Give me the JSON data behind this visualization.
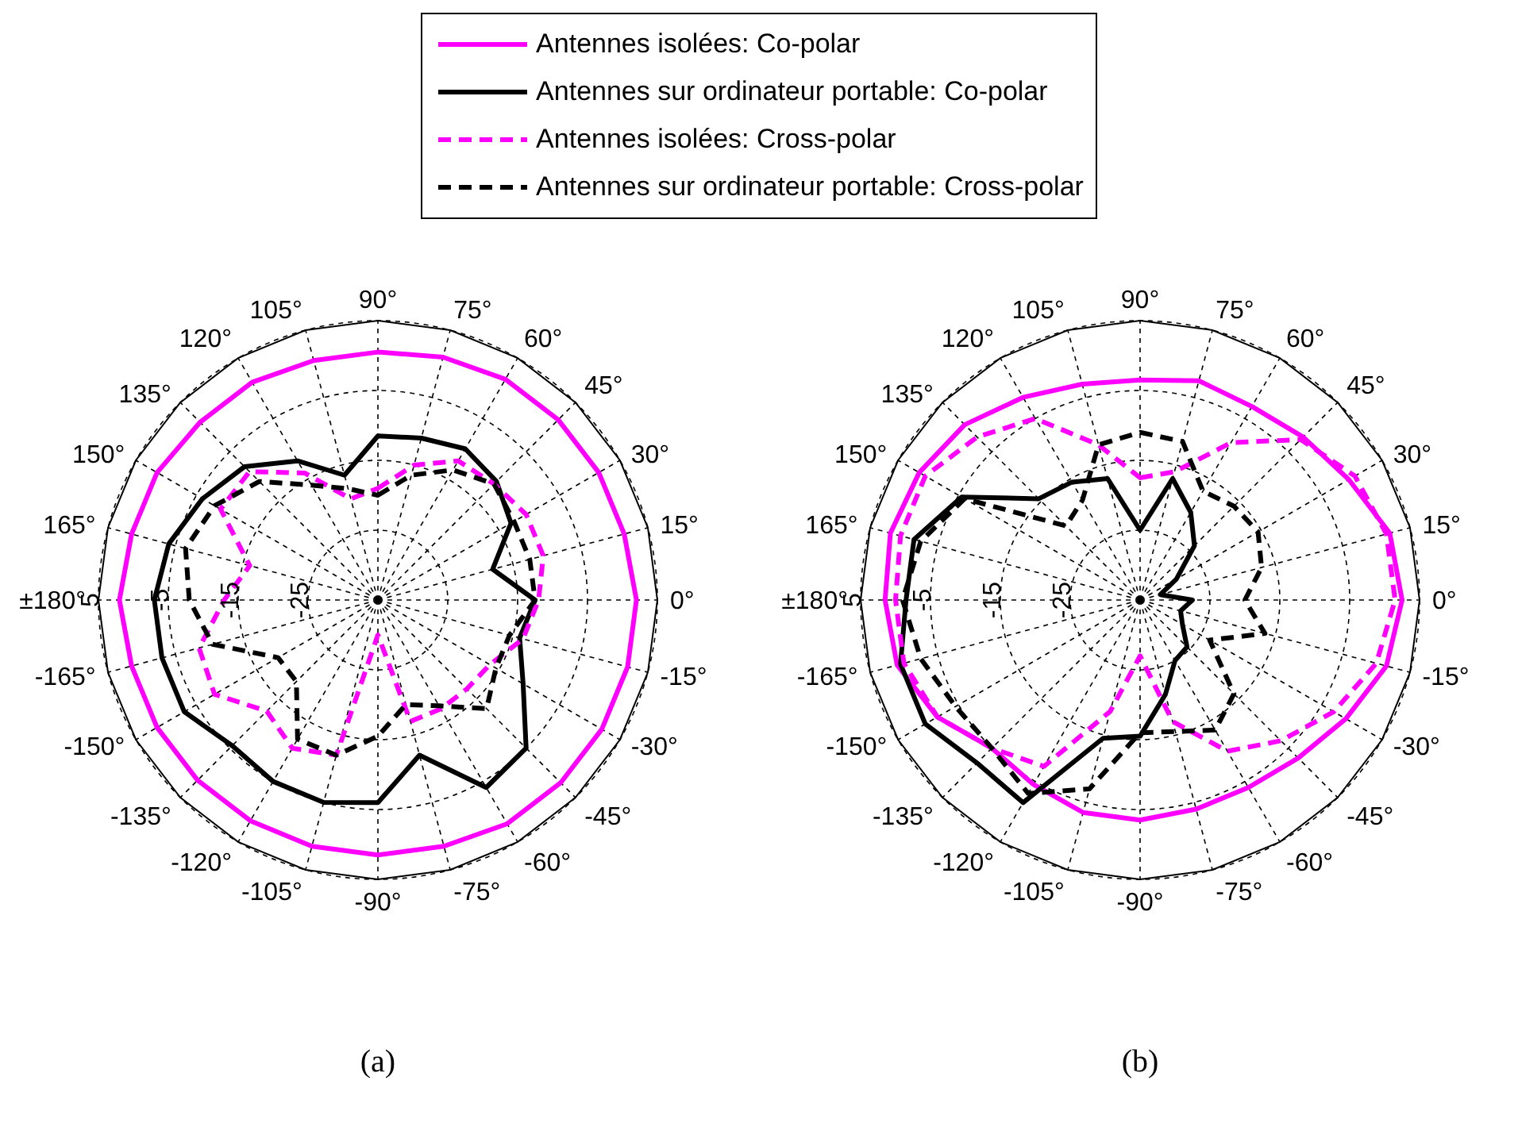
{
  "chart_data": [
    {
      "type": "radar",
      "title": "(a)",
      "categories": [
        "90°",
        "75°",
        "60°",
        "45°",
        "30°",
        "15°",
        "0°",
        "-15°",
        "-30°",
        "-45°",
        "-60°",
        "-75°",
        "-90°",
        "-105°",
        "-120°",
        "-135°",
        "-150°",
        "-165°",
        "±180°",
        "165°",
        "150°",
        "135°",
        "120°",
        "105°"
      ],
      "ylim": [
        -35,
        5
      ],
      "yticks": [
        -25,
        -15,
        -5,
        5
      ],
      "grid": true,
      "legend": "top",
      "series": [
        {
          "name": "Antennes isolées: Co-polar",
          "color": "#ff00ff",
          "line_style": "solid",
          "values": [
            0.5,
            1,
            1.5,
            1.5,
            1.5,
            1.5,
            2,
            2,
            2,
            2,
            2,
            1.5,
            1.5,
            1.5,
            1.5,
            1.5,
            1.5,
            1.5,
            2,
            1.5,
            1.5,
            1,
            1,
            0.5
          ]
        },
        {
          "name": "Antennes sur ordinateur portable: Co-polar",
          "color": "#000000",
          "line_style": "solid",
          "values": [
            -11.5,
            -11,
            -10,
            -11,
            -13,
            -18,
            -12.5,
            -14,
            -11,
            -5,
            -4,
            -12,
            -6,
            -5,
            -5,
            -5.5,
            -3,
            -3,
            -3,
            -4,
            -6,
            -8,
            -12,
            -16.5
          ]
        },
        {
          "name": "Antennes isolées: Cross-polar",
          "color": "#ff00ff",
          "line_style": "dashed",
          "values": [
            -19,
            -15,
            -12,
            -11.5,
            -10.5,
            -10.5,
            -12,
            -13.5,
            -16.5,
            -17,
            -17,
            -17,
            -30,
            -12,
            -10.5,
            -12.5,
            -8,
            -8.5,
            -13,
            -16,
            -9,
            -9,
            -14,
            -20
          ]
        },
        {
          "name": "Antennes sur ordinateur portable: Cross-polar",
          "color": "#000000",
          "line_style": "dashed",
          "values": [
            -20,
            -16.5,
            -13.5,
            -11.5,
            -12.5,
            -12.5,
            -12.5,
            -15.5,
            -15.5,
            -13,
            -17.5,
            -19.5,
            -15.5,
            -12,
            -12,
            -18.5,
            -18.5,
            -10.5,
            -8,
            -6.5,
            -8,
            -11,
            -16,
            -18.5
          ]
        }
      ]
    },
    {
      "type": "radar",
      "title": "(b)",
      "categories": [
        "90°",
        "75°",
        "60°",
        "45°",
        "30°",
        "15°",
        "0°",
        "-15°",
        "-30°",
        "-45°",
        "-60°",
        "-75°",
        "-90°",
        "-105°",
        "-120°",
        "-135°",
        "-150°",
        "-165°",
        "±180°",
        "165°",
        "150°",
        "135°",
        "120°",
        "105°"
      ],
      "ylim": [
        -35,
        5
      ],
      "yticks": [
        -25,
        -15,
        -5,
        5
      ],
      "grid": true,
      "series": [
        {
          "color": "#ff00ff",
          "line_style": "solid",
          "values": [
            -3.5,
            -2.5,
            -3,
            -2,
            -0.5,
            2,
            2.5,
            1.5,
            -1,
            -3,
            -4,
            -4,
            -3.5,
            -3.5,
            -4.5,
            -5,
            -1.5,
            1,
            1.5,
            2,
            1.5,
            0.5,
            -1.5,
            -3
          ]
        },
        {
          "color": "#000000",
          "line_style": "solid",
          "values": [
            -25,
            -17,
            -20.5,
            -24,
            -29,
            -32,
            -27.5,
            -29,
            -28,
            -25.5,
            -25,
            -21,
            -15.5,
            -14.5,
            -1.5,
            -2,
            0.5,
            0.5,
            -1.5,
            -1.5,
            -5.5,
            -14.5,
            -15.5,
            -17
          ]
        },
        {
          "color": "#ff00ff",
          "line_style": "dashed",
          "values": [
            -17.5,
            -16,
            -9,
            -2.5,
            0.5,
            1.5,
            1.5,
            0,
            -3,
            -6.5,
            -10,
            -17,
            -27,
            -18.5,
            -7.5,
            -5,
            -1.5,
            0,
            0,
            0.5,
            0.5,
            -2,
            -5,
            -12
          ]
        },
        {
          "color": "#000000",
          "line_style": "dashed",
          "values": [
            -11,
            -11.5,
            -17,
            -16,
            -15.5,
            -17,
            -20,
            -16.5,
            -23.5,
            -16,
            -13.5,
            -15.5,
            -16,
            -7,
            -3,
            -5,
            -4.5,
            -2.5,
            -1,
            -2.5,
            -6,
            -20,
            -18.5,
            -12
          ]
        }
      ]
    }
  ]
}
